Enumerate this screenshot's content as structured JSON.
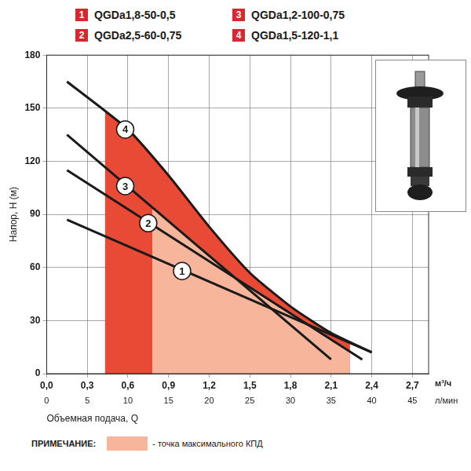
{
  "chart_data": {
    "type": "line",
    "color": "#d7282f",
    "legend": "top",
    "grid": true,
    "ylabel": "Напор, H (м)",
    "xlabel": "Объемная подача, Q",
    "x_unit": "м³/ч",
    "x2_unit": "л/мин",
    "xlim": [
      0,
      2.82
    ],
    "xticks": [
      {
        "value": 0,
        "label": "0,0"
      },
      {
        "value": 0.3,
        "label": "0,3"
      },
      {
        "value": 0.6,
        "label": "0,6"
      },
      {
        "value": 0.9,
        "label": "0,9"
      },
      {
        "value": 1.2,
        "label": "1,2"
      },
      {
        "value": 1.5,
        "label": "1,5"
      },
      {
        "value": 1.8,
        "label": "1,8"
      },
      {
        "value": 2.1,
        "label": "2,1"
      },
      {
        "value": 2.4,
        "label": "2,4"
      },
      {
        "value": 2.7,
        "label": "2,7"
      }
    ],
    "x2lim": [
      0,
      47
    ],
    "x2ticks": [
      0,
      5,
      10,
      15,
      20,
      25,
      30,
      35,
      40,
      45
    ],
    "ylim": [
      0,
      180
    ],
    "yticks": [
      0,
      30,
      60,
      90,
      120,
      150,
      180
    ],
    "series": [
      {
        "key": "1",
        "name": "QGDa1,8-50-0,5",
        "color": "#1a1a1a",
        "x": [
          0.15,
          2.4
        ],
        "values": [
          87,
          12
        ],
        "label_at": [
          1.0,
          58
        ]
      },
      {
        "key": "2",
        "name": "QGDa2,5-60-0,75",
        "color": "#1a1a1a",
        "x": [
          0.15,
          2.33
        ],
        "values": [
          115,
          8
        ],
        "label_at": [
          0.75,
          85
        ]
      },
      {
        "key": "3",
        "name": "QGDa1,2-100-0,75",
        "color": "#1a1a1a",
        "x": [
          0.15,
          2.1
        ],
        "values": [
          135,
          8
        ],
        "label_at": [
          0.58,
          106
        ]
      },
      {
        "key": "4",
        "name": "QGDa1,5-120-1,1",
        "color": "#1a1a1a",
        "x": [
          0.15,
          0.6,
          0.9,
          1.2,
          1.5,
          1.8,
          2.1,
          2.4
        ],
        "values": [
          165,
          138,
          112,
          83,
          57,
          38,
          23,
          12
        ],
        "label_at": [
          0.58,
          138
        ]
      }
    ],
    "zones": [
      {
        "color": "#e84a35",
        "x": [
          0.43,
          0.6,
          0.9,
          1.2,
          1.5,
          1.8,
          2.1,
          2.24
        ],
        "values": [
          148,
          138,
          112,
          83,
          57,
          38,
          23,
          18
        ]
      },
      {
        "color": "#f7b59b",
        "x": [
          0.78,
          0.9,
          1.2,
          1.3,
          1.5,
          1.8,
          2.1,
          2.24
        ],
        "values": [
          94,
          86,
          67,
          60,
          49,
          34,
          20,
          13
        ]
      }
    ],
    "note": {
      "label": "ПРИМЕЧАНИЕ:",
      "text": "- точка максимального КПД",
      "color": "#f7b59b"
    }
  }
}
